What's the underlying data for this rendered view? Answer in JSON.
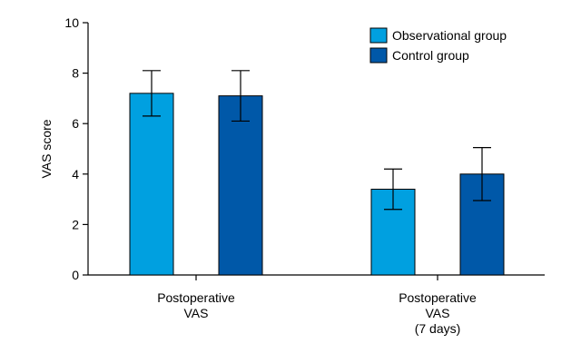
{
  "chart_data": {
    "type": "bar",
    "ylabel": "VAS score",
    "ylim": [
      0,
      10
    ],
    "yticks": [
      "0",
      "2",
      "4",
      "6",
      "8",
      "10"
    ],
    "categories": [
      [
        "Postoperative",
        "VAS"
      ],
      [
        "Postoperative",
        "VAS",
        "(7 days)"
      ]
    ],
    "series": [
      {
        "name": "Observational group",
        "color": "#00a0e0",
        "values": [
          7.2,
          3.4
        ],
        "errors": [
          0.9,
          0.8
        ]
      },
      {
        "name": "Control group",
        "color": "#0058a8",
        "values": [
          7.1,
          4.0
        ],
        "errors": [
          1.0,
          1.05
        ]
      }
    ],
    "legend_position": "top-right"
  }
}
